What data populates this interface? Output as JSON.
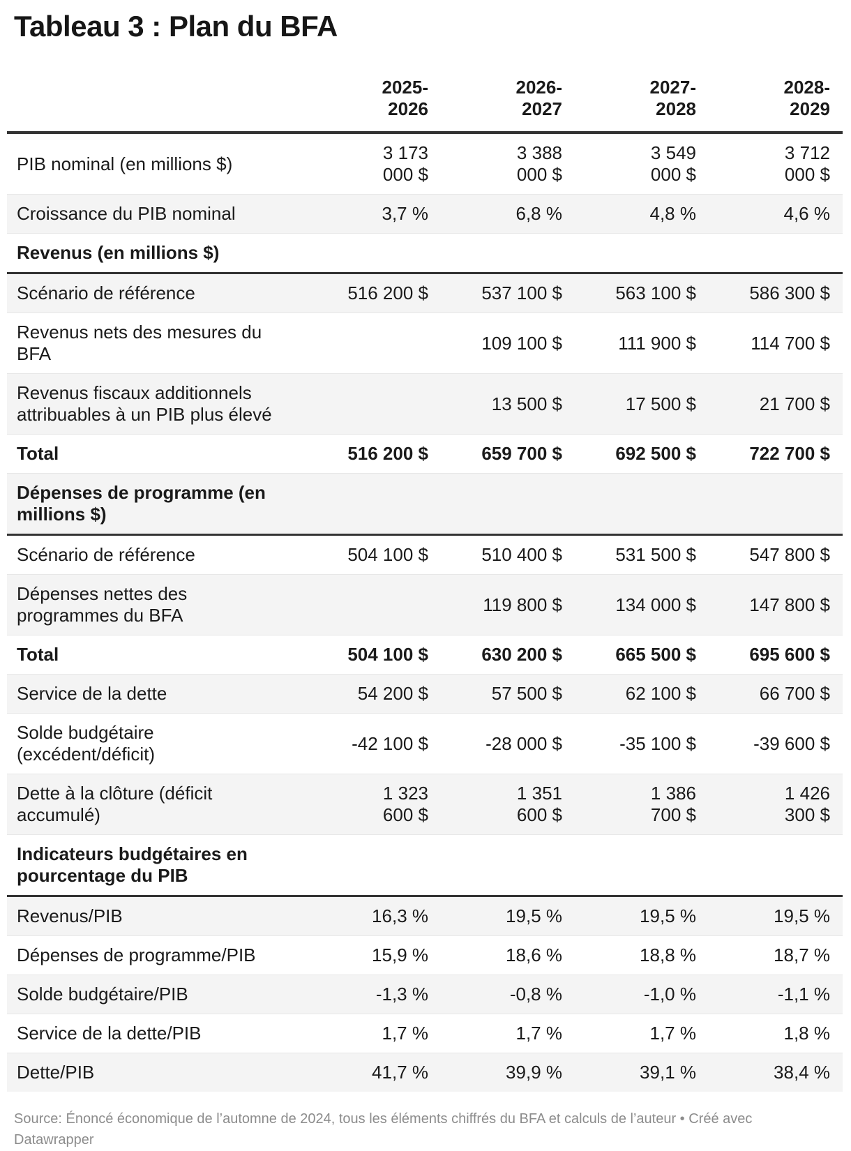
{
  "title": "Tableau 3 : Plan du BFA",
  "table": {
    "column_headers": [
      "2025-\n2026",
      "2026-\n2027",
      "2027-\n2028",
      "2028-\n2029"
    ],
    "rows": [
      {
        "type": "data",
        "label": "PIB nominal (en millions $)",
        "values": [
          "3 173\n000 $",
          "3 388\n000 $",
          "3 549\n000 $",
          "3 712\n000 $"
        ]
      },
      {
        "type": "data",
        "label": "Croissance du PIB nominal",
        "values": [
          "3,7 %",
          "6,8 %",
          "4,8 %",
          "4,6 %"
        ]
      },
      {
        "type": "section",
        "label": "Revenus (en millions $)"
      },
      {
        "type": "data",
        "label": "Scénario de référence",
        "values": [
          "516 200 $",
          "537 100 $",
          "563 100 $",
          "586 300 $"
        ]
      },
      {
        "type": "data",
        "label": "Revenus nets des mesures du\nBFA",
        "values": [
          "",
          "109 100 $",
          "111 900 $",
          "114 700 $"
        ]
      },
      {
        "type": "data",
        "label": "Revenus fiscaux additionnels\nattribuables à un PIB plus élevé",
        "values": [
          "",
          "13 500 $",
          "17 500 $",
          "21 700 $"
        ]
      },
      {
        "type": "total",
        "label": "Total",
        "values": [
          "516 200 $",
          "659 700 $",
          "692 500 $",
          "722 700 $"
        ]
      },
      {
        "type": "section",
        "label": "Dépenses de programme (en\nmillions $)"
      },
      {
        "type": "data",
        "label": "Scénario de référence",
        "values": [
          "504 100 $",
          "510 400 $",
          "531 500 $",
          "547 800 $"
        ]
      },
      {
        "type": "data",
        "label": "Dépenses nettes des\nprogrammes du BFA",
        "values": [
          "",
          "119 800 $",
          "134 000 $",
          "147 800 $"
        ]
      },
      {
        "type": "total",
        "label": "Total",
        "values": [
          "504 100 $",
          "630 200 $",
          "665 500 $",
          "695 600 $"
        ]
      },
      {
        "type": "data",
        "label": "Service de la dette",
        "values": [
          "54 200 $",
          "57 500 $",
          "62 100 $",
          "66 700 $"
        ]
      },
      {
        "type": "data",
        "label": "Solde budgétaire\n(excédent/déficit)",
        "values": [
          "-42 100 $",
          "-28 000 $",
          "-35 100 $",
          "-39 600 $"
        ]
      },
      {
        "type": "data",
        "label": "Dette à la clôture (déficit\naccumulé)",
        "values": [
          "1 323\n600 $",
          "1 351\n600 $",
          "1 386\n700 $",
          "1 426\n300 $"
        ]
      },
      {
        "type": "section",
        "label": "Indicateurs budgétaires en\npourcentage du PIB"
      },
      {
        "type": "data",
        "label": "Revenus/PIB",
        "values": [
          "16,3 %",
          "19,5 %",
          "19,5 %",
          "19,5 %"
        ]
      },
      {
        "type": "data",
        "label": "Dépenses de programme/PIB",
        "values": [
          "15,9 %",
          "18,6 %",
          "18,8 %",
          "18,7 %"
        ]
      },
      {
        "type": "data",
        "label": "Solde budgétaire/PIB",
        "values": [
          "-1,3 %",
          "-0,8 %",
          "-1,0 %",
          "-1,1 %"
        ]
      },
      {
        "type": "data",
        "label": "Service de la dette/PIB",
        "values": [
          "1,7 %",
          "1,7 %",
          "1,7 %",
          "1,8 %"
        ]
      },
      {
        "type": "data",
        "label": "Dette/PIB",
        "values": [
          "41,7 %",
          "39,9 %",
          "39,1 %",
          "38,4 %"
        ]
      }
    ]
  },
  "footer": "Source: Énoncé économique de l’automne de 2024, tous les éléments chiffrés du BFA et calculs de l’auteur • Créé avec\nDatawrapper",
  "colors": {
    "text": "#1a1a1a",
    "stripe": "#f4f4f4",
    "row_border": "#e7e7e7",
    "heavy_border": "#333333",
    "footer_text": "#8c8c8c"
  },
  "chart_data": {
    "type": "table",
    "title": "Tableau 3 : Plan du BFA",
    "columns": [
      "2025-2026",
      "2026-2027",
      "2027-2028",
      "2028-2029"
    ],
    "rows": [
      {
        "label": "PIB nominal (en millions $)",
        "unit": "$",
        "values": [
          3173000,
          3388000,
          3549000,
          3712000
        ]
      },
      {
        "label": "Croissance du PIB nominal",
        "unit": "%",
        "values": [
          3.7,
          6.8,
          4.8,
          4.6
        ]
      },
      {
        "label": "Revenus (en millions $)",
        "section": true,
        "values": [
          null,
          null,
          null,
          null
        ]
      },
      {
        "label": "Scénario de référence",
        "unit": "$",
        "values": [
          516200,
          537100,
          563100,
          586300
        ]
      },
      {
        "label": "Revenus nets des mesures du BFA",
        "unit": "$",
        "values": [
          null,
          109100,
          111900,
          114700
        ]
      },
      {
        "label": "Revenus fiscaux additionnels attribuables à un PIB plus élevé",
        "unit": "$",
        "values": [
          null,
          13500,
          17500,
          21700
        ]
      },
      {
        "label": "Total (Revenus)",
        "unit": "$",
        "values": [
          516200,
          659700,
          692500,
          722700
        ]
      },
      {
        "label": "Dépenses de programme (en millions $)",
        "section": true,
        "values": [
          null,
          null,
          null,
          null
        ]
      },
      {
        "label": "Scénario de référence",
        "unit": "$",
        "values": [
          504100,
          510400,
          531500,
          547800
        ]
      },
      {
        "label": "Dépenses nettes des programmes du BFA",
        "unit": "$",
        "values": [
          null,
          119800,
          134000,
          147800
        ]
      },
      {
        "label": "Total (Dépenses de programme)",
        "unit": "$",
        "values": [
          504100,
          630200,
          665500,
          695600
        ]
      },
      {
        "label": "Service de la dette",
        "unit": "$",
        "values": [
          54200,
          57500,
          62100,
          66700
        ]
      },
      {
        "label": "Solde budgétaire (excédent/déficit)",
        "unit": "$",
        "values": [
          -42100,
          -28000,
          -35100,
          -39600
        ]
      },
      {
        "label": "Dette à la clôture (déficit accumulé)",
        "unit": "$",
        "values": [
          1323600,
          1351600,
          1386700,
          1426300
        ]
      },
      {
        "label": "Indicateurs budgétaires en pourcentage du PIB",
        "section": true,
        "values": [
          null,
          null,
          null,
          null
        ]
      },
      {
        "label": "Revenus/PIB",
        "unit": "%",
        "values": [
          16.3,
          19.5,
          19.5,
          19.5
        ]
      },
      {
        "label": "Dépenses de programme/PIB",
        "unit": "%",
        "values": [
          15.9,
          18.6,
          18.8,
          18.7
        ]
      },
      {
        "label": "Solde budgétaire/PIB",
        "unit": "%",
        "values": [
          -1.3,
          -0.8,
          -1.0,
          -1.1
        ]
      },
      {
        "label": "Service de la dette/PIB",
        "unit": "%",
        "values": [
          1.7,
          1.7,
          1.7,
          1.8
        ]
      },
      {
        "label": "Dette/PIB",
        "unit": "%",
        "values": [
          41.7,
          39.9,
          39.1,
          38.4
        ]
      }
    ]
  }
}
